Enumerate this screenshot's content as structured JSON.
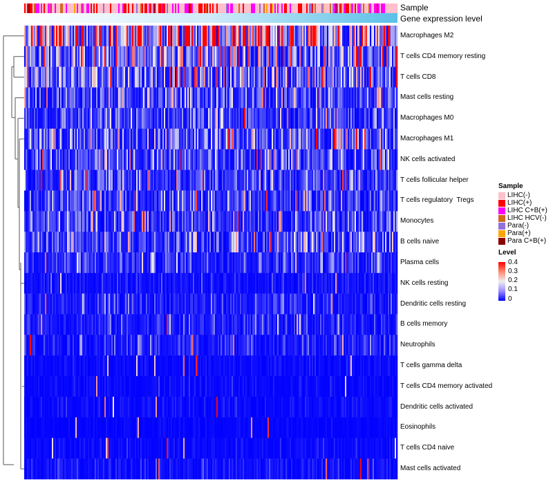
{
  "chart_data": {
    "type": "heatmap",
    "annotations": [
      {
        "name": "Sample",
        "type": "categorical"
      },
      {
        "name": "Gene expression level",
        "type": "continuous",
        "colors": [
          "#ffffff",
          "#5bc0e8"
        ]
      }
    ],
    "rows": [
      {
        "label": "Macrophages M2",
        "mean_level": 0.27
      },
      {
        "label": "T cells CD4 memory resting",
        "mean_level": 0.12
      },
      {
        "label": "T cells CD8",
        "mean_level": 0.11
      },
      {
        "label": "Mast cells resting",
        "mean_level": 0.07
      },
      {
        "label": "Macrophages M0",
        "mean_level": 0.06
      },
      {
        "label": "Macrophages M1",
        "mean_level": 0.08
      },
      {
        "label": "NK cells activated",
        "mean_level": 0.07
      },
      {
        "label": "T cells follicular helper",
        "mean_level": 0.06
      },
      {
        "label": "T cells regulatory  Tregs",
        "mean_level": 0.06
      },
      {
        "label": "Monocytes",
        "mean_level": 0.07
      },
      {
        "label": "B cells naive",
        "mean_level": 0.06
      },
      {
        "label": "Plasma cells",
        "mean_level": 0.05
      },
      {
        "label": "NK cells resting",
        "mean_level": 0.02
      },
      {
        "label": "Dendritic cells resting",
        "mean_level": 0.03
      },
      {
        "label": "B cells memory",
        "mean_level": 0.03
      },
      {
        "label": "Neutrophils",
        "mean_level": 0.03
      },
      {
        "label": "T cells gamma delta",
        "mean_level": 0.01
      },
      {
        "label": "T cells CD4 memory activated",
        "mean_level": 0.01
      },
      {
        "label": "Dendritic cells activated",
        "mean_level": 0.01
      },
      {
        "label": "Eosinophils",
        "mean_level": 0.005
      },
      {
        "label": "T cells CD4 naive",
        "mean_level": 0.01
      },
      {
        "label": "Mast cells activated",
        "mean_level": 0.015
      }
    ],
    "n_columns": 270,
    "sample_legend": {
      "title": "Sample",
      "items": [
        {
          "label": "LIHC(-)",
          "color": "#ffc0cb"
        },
        {
          "label": "LIHC(+)",
          "color": "#ff0000"
        },
        {
          "label": "LIHC C+B(+)",
          "color": "#ff00ff"
        },
        {
          "label": "LIHC HCV(-)",
          "color": "#d2691e"
        },
        {
          "label": "Para(-)",
          "color": "#9370db"
        },
        {
          "label": "Para(+)",
          "color": "#ffa500"
        },
        {
          "label": "Para C+B(+)",
          "color": "#8b0000"
        }
      ]
    },
    "level_legend": {
      "title": "Level",
      "ticks": [
        "0.4",
        "0.3",
        "0.2",
        "0.1",
        "0"
      ],
      "range": [
        0,
        0.4
      ],
      "colors": [
        "#0000ff",
        "#eeeeee",
        "#ff0000"
      ]
    }
  }
}
